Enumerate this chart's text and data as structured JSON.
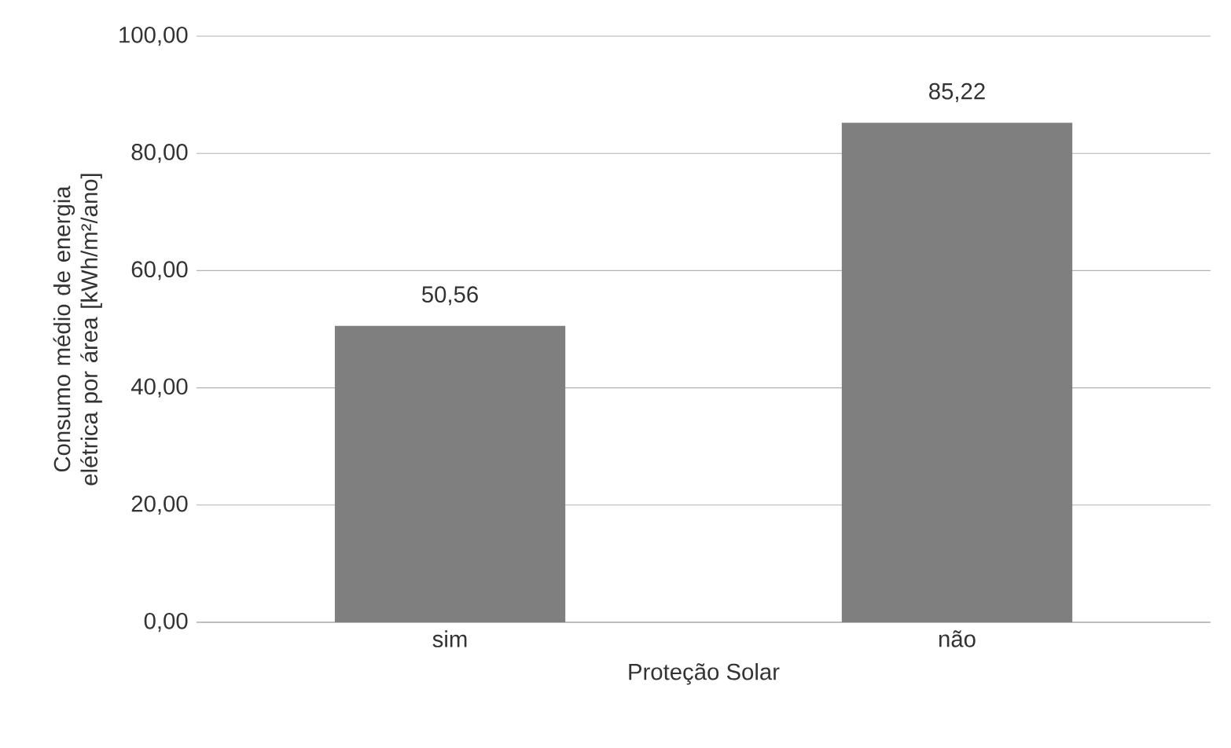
{
  "chart_data": {
    "type": "bar",
    "xlabel": "Proteção Solar",
    "ylabel": "Consumo médio de energia elétrica por área [kWh/m²/ano]",
    "categories": [
      "sim",
      "não"
    ],
    "values": [
      50.56,
      85.22
    ],
    "value_labels": [
      "50,56",
      "85,22"
    ],
    "color": "#7f7f7f",
    "ylim": [
      0,
      100
    ],
    "yticks": [
      {
        "value": 0,
        "label": "0,00"
      },
      {
        "value": 20,
        "label": "20,00"
      },
      {
        "value": 40,
        "label": "40,00"
      },
      {
        "value": 60,
        "label": "60,00"
      },
      {
        "value": 80,
        "label": "80,00"
      },
      {
        "value": 100,
        "label": "100,00"
      }
    ],
    "grid": "y"
  }
}
